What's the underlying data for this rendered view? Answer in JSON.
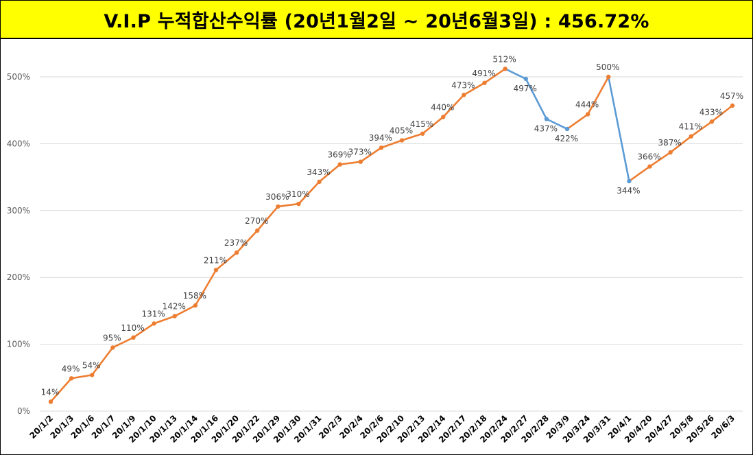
{
  "header": {
    "title": "V.I.P 누적합산수익률 (20년1월2일 ~ 20년6월3일) : 456.72%"
  },
  "chart_data": {
    "type": "line",
    "title": "V.I.P 누적합산수익률 (20년1월2일 ~ 20년6월3일) : 456.72%",
    "xlabel": "",
    "ylabel": "",
    "ylim": [
      0,
      550
    ],
    "yticks": [
      0,
      100,
      200,
      300,
      400,
      500
    ],
    "ytick_labels": [
      "0%",
      "100%",
      "200%",
      "300%",
      "400%",
      "500%"
    ],
    "grid": true,
    "colors": {
      "rising": "#ed7d31",
      "falling": "#5b9bd5",
      "grid": "#d9d9d9"
    },
    "categories": [
      "20/1/2",
      "20/1/3",
      "20/1/6",
      "20/1/7",
      "20/1/9",
      "20/1/10",
      "20/1/13",
      "20/1/14",
      "20/1/16",
      "20/1/20",
      "20/1/22",
      "20/1/29",
      "20/1/30",
      "20/1/31",
      "20/2/3",
      "20/2/4",
      "20/2/6",
      "20/2/10",
      "20/2/13",
      "20/2/14",
      "20/2/17",
      "20/2/18",
      "20/2/24",
      "20/2/27",
      "20/2/28",
      "20/3/9",
      "20/3/24",
      "20/3/31",
      "20/4/1",
      "20/4/20",
      "20/4/27",
      "20/5/8",
      "20/5/26",
      "20/6/3"
    ],
    "values": [
      14,
      49,
      54,
      95,
      110,
      131,
      142,
      158,
      211,
      237,
      270,
      306,
      310,
      343,
      369,
      373,
      394,
      405,
      415,
      440,
      473,
      491,
      512,
      497,
      437,
      422,
      444,
      500,
      344,
      366,
      387,
      411,
      433,
      457
    ],
    "labels": [
      "14%",
      "49%",
      "54%",
      "95%",
      "110%",
      "131%",
      "142%",
      "158%",
      "211%",
      "237%",
      "270%",
      "306%",
      "310%",
      "343%",
      "369%",
      "373%",
      "394%",
      "405%",
      "415%",
      "440%",
      "473%",
      "491%",
      "512%",
      "497%",
      "437%",
      "422%",
      "444%",
      "500%",
      "344%",
      "366%",
      "387%",
      "411%",
      "433%",
      "457%"
    ]
  }
}
